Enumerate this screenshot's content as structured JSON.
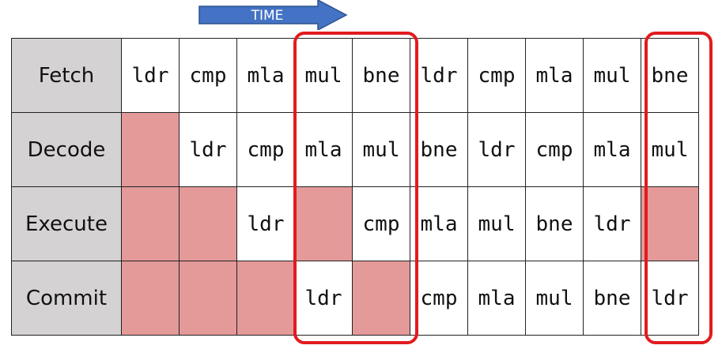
{
  "time_label": "TIME",
  "stages": [
    {
      "name": "Fetch",
      "cells": [
        "ldr",
        "cmp",
        "mla",
        "mul",
        "bne",
        "ldr",
        "cmp",
        "mla",
        "mul",
        "bne"
      ]
    },
    {
      "name": "Decode",
      "cells": [
        "",
        "ldr",
        "cmp",
        "mla",
        "mul",
        "bne",
        "ldr",
        "cmp",
        "mla",
        "mul"
      ]
    },
    {
      "name": "Execute",
      "cells": [
        "",
        "",
        "ldr",
        "",
        "cmp",
        "mla",
        "mul",
        "bne",
        "ldr",
        ""
      ]
    },
    {
      "name": "Commit",
      "cells": [
        "",
        "",
        "",
        "ldr",
        "",
        "cmp",
        "mla",
        "mul",
        "bne",
        "ldr"
      ]
    }
  ],
  "stall_cells": [
    [],
    [
      0
    ],
    [
      0,
      1,
      3,
      9
    ],
    [
      0,
      1,
      2,
      4
    ]
  ],
  "colors": {
    "stall": "#e39a99",
    "highlight": "#e11b1f",
    "arrow": "#4472c4",
    "stage_bg": "#d4d2d3"
  }
}
